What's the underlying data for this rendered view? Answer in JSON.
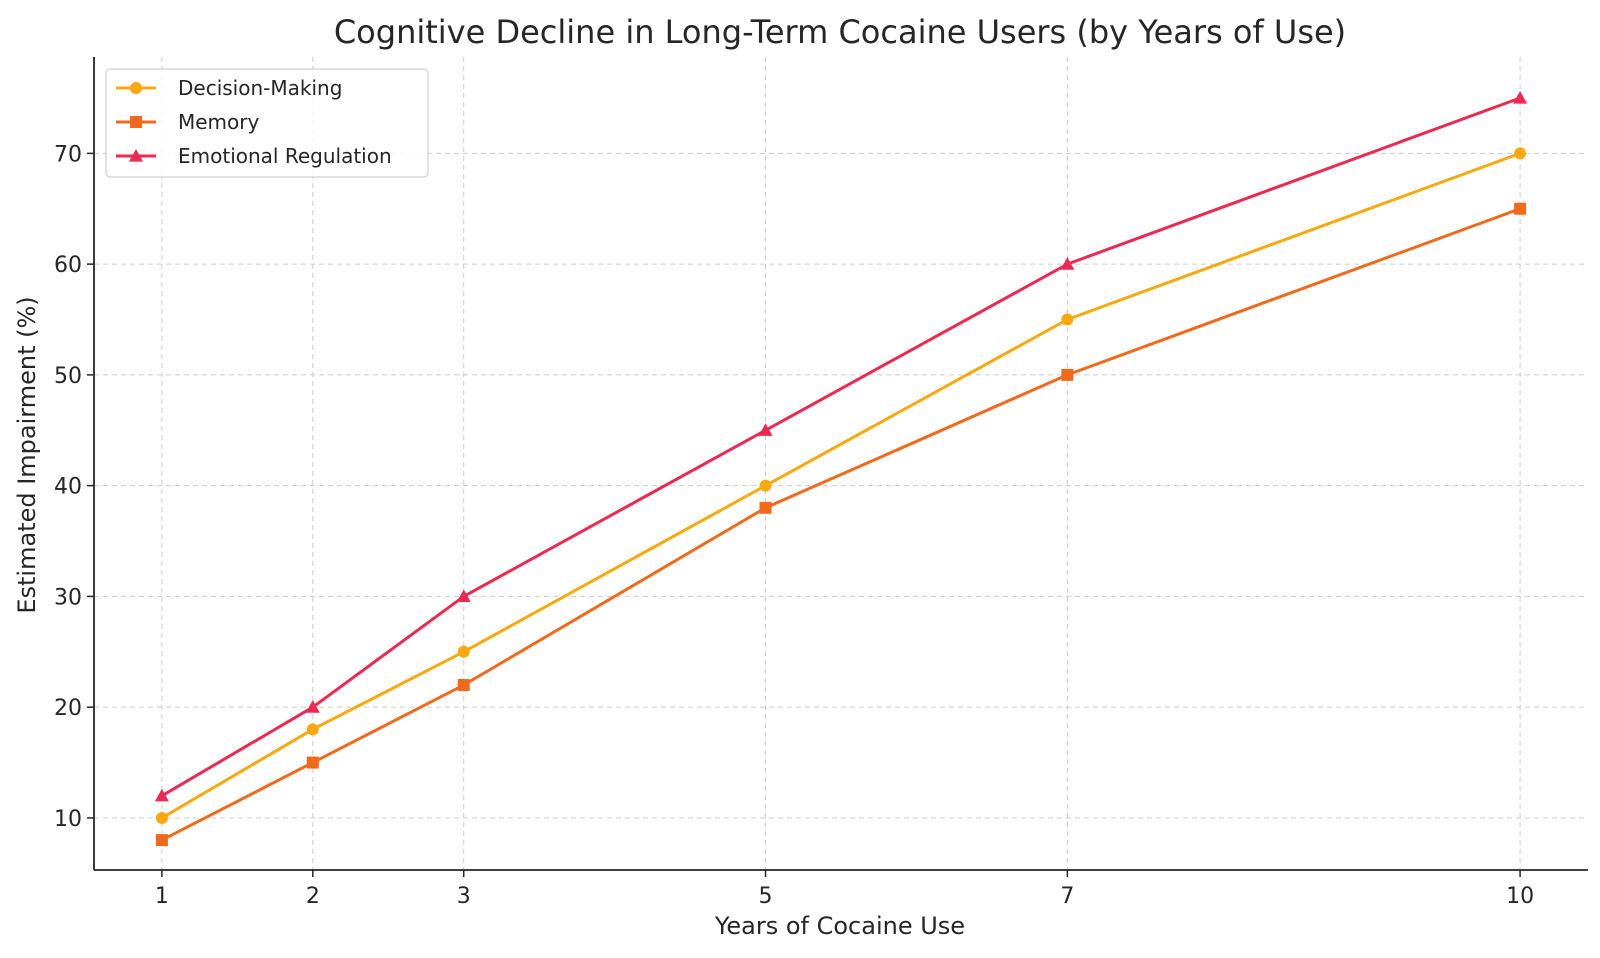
{
  "chart_data": {
    "type": "line",
    "title": "Cognitive Decline in Long-Term Cocaine Users (by Years of Use)",
    "xlabel": "Years of Cocaine Use",
    "ylabel": "Estimated Impairment (%)",
    "x": [
      1,
      2,
      3,
      5,
      7,
      10
    ],
    "xticks": [
      "1",
      "2",
      "3",
      "5",
      "7",
      "10"
    ],
    "yticks": [
      "10",
      "20",
      "30",
      "40",
      "50",
      "60",
      "70"
    ],
    "xlim": [
      0.55,
      10.45
    ],
    "ylim": [
      5.3,
      78.7
    ],
    "grid": true,
    "legend_position": "upper-left",
    "series": [
      {
        "name": "Decision-Making",
        "values": [
          10,
          18,
          25,
          40,
          55,
          70
        ],
        "color": "#f7a90f",
        "marker": "circle"
      },
      {
        "name": "Memory",
        "values": [
          8,
          15,
          22,
          38,
          50,
          65
        ],
        "color": "#f06a1e",
        "marker": "square"
      },
      {
        "name": "Emotional Regulation",
        "values": [
          12,
          20,
          30,
          45,
          60,
          75
        ],
        "color": "#ea2a52",
        "marker": "triangle"
      }
    ]
  }
}
